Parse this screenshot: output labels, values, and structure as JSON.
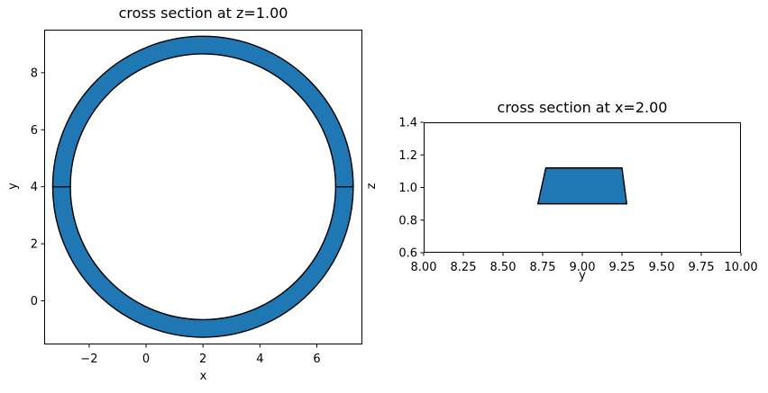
{
  "figure": {
    "background": "#ffffff"
  },
  "chart_data": [
    {
      "type": "area",
      "title": "cross section at z=1.00",
      "xlabel": "x",
      "ylabel": "y",
      "xlim": [
        -3.58,
        7.6
      ],
      "ylim": [
        -1.53,
        9.51
      ],
      "xticks": [
        -2,
        0,
        2,
        4,
        6
      ],
      "xticklabels": [
        "−2",
        "0",
        "2",
        "4",
        "6"
      ],
      "yticks": [
        0,
        2,
        4,
        6,
        8
      ],
      "yticklabels": [
        "0",
        "2",
        "4",
        "6",
        "8"
      ],
      "grid": false,
      "legend": null,
      "shape": {
        "kind": "annulus",
        "center": [
          2,
          4
        ],
        "r_outer": 5.28,
        "r_inner": 4.66,
        "seam_y": 4,
        "fill": "#1f77b4",
        "edge": "#000000",
        "linewidth": 1.4
      }
    },
    {
      "type": "area",
      "title": "cross section at x=2.00",
      "xlabel": "y",
      "ylabel": "z",
      "xlim": [
        8.0,
        10.0
      ],
      "ylim": [
        0.6,
        1.4
      ],
      "xticks": [
        8.0,
        8.25,
        8.5,
        8.75,
        9.0,
        9.25,
        9.5,
        9.75,
        10.0
      ],
      "xticklabels": [
        "8.00",
        "8.25",
        "8.50",
        "8.75",
        "9.00",
        "9.25",
        "9.50",
        "9.75",
        "10.00"
      ],
      "yticks": [
        0.6,
        0.8,
        1.0,
        1.2,
        1.4
      ],
      "yticklabels": [
        "0.6",
        "0.8",
        "1.0",
        "1.2",
        "1.4"
      ],
      "grid": false,
      "legend": null,
      "shape": {
        "kind": "polygon",
        "vertices": [
          [
            8.72,
            0.9
          ],
          [
            9.28,
            0.9
          ],
          [
            9.25,
            1.12
          ],
          [
            8.77,
            1.12
          ]
        ],
        "fill": "#1f77b4",
        "edge": "#000000",
        "linewidth": 1.4
      }
    }
  ]
}
